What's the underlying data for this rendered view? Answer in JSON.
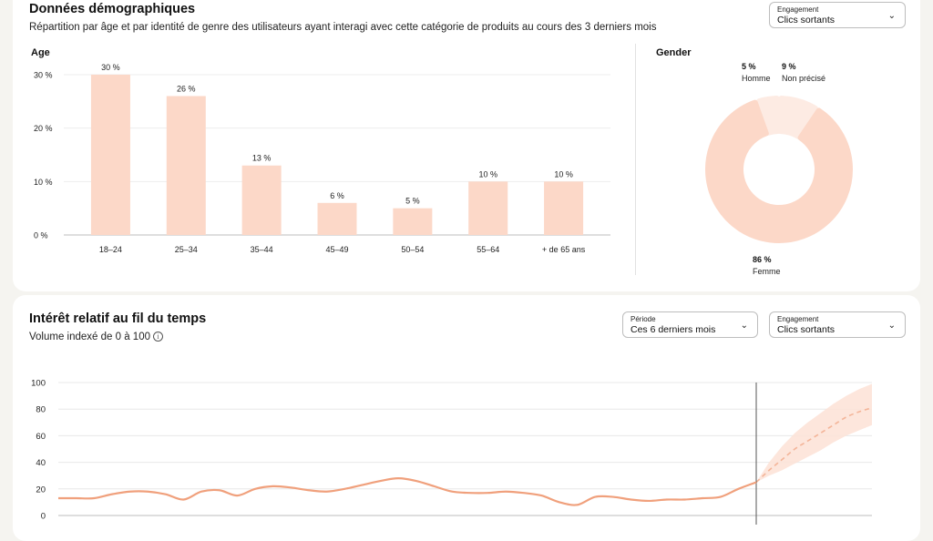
{
  "demographics": {
    "title": "Données démographiques",
    "subtitle": "Répartition par âge et par identité de genre des utilisateurs ayant interagi avec cette catégorie de produits au cours des 3 derniers mois",
    "engagement": {
      "label": "Engagement",
      "value": "Clics sortants"
    },
    "age_label": "Age",
    "gender_label": "Gender"
  },
  "interest": {
    "title": "Intérêt relatif au fil du temps",
    "subtitle": "Volume indexé de 0 à 100",
    "info_icon": "info-icon",
    "period": {
      "label": "Période",
      "value": "Ces 6 derniers mois"
    },
    "engagement": {
      "label": "Engagement",
      "value": "Clics sortants"
    }
  },
  "colors": {
    "bar": "#fcd8c8",
    "line": "#f0a07c",
    "forecast_band": "#fde2d6",
    "donut": "#fcd8c8",
    "donut_light": "#fdebe3"
  },
  "chart_data": [
    {
      "type": "bar",
      "title": "Age",
      "categories": [
        "18–24",
        "25–34",
        "35–44",
        "45–49",
        "50–54",
        "55–64",
        "+ de 65 ans"
      ],
      "values": [
        30,
        26,
        13,
        6,
        5,
        10,
        10
      ],
      "value_labels": [
        "30 %",
        "26 %",
        "13 %",
        "6 %",
        "5 %",
        "10 %",
        "10 %"
      ],
      "yticks": [
        "0 %",
        "10 %",
        "20 %",
        "30 %"
      ],
      "ylim": [
        0,
        30
      ]
    },
    {
      "type": "pie",
      "title": "Gender",
      "labels": [
        "Homme",
        "Non précisé",
        "Femme"
      ],
      "values": [
        5,
        9,
        86
      ],
      "value_labels": [
        "5 %",
        "9 %",
        "86 %"
      ]
    },
    {
      "type": "line",
      "title": "Intérêt relatif au fil du temps",
      "ylim": [
        0,
        100
      ],
      "yticks": [
        0,
        20,
        40,
        60,
        80,
        100
      ],
      "series": [
        {
          "values": [
            13,
            13,
            13,
            16,
            18,
            18,
            16,
            12,
            18,
            19,
            15,
            20,
            22,
            21,
            19,
            18,
            20,
            23,
            26,
            28,
            26,
            22,
            18,
            17,
            17,
            18,
            17,
            15,
            10,
            8,
            14,
            14,
            12,
            11,
            12,
            12,
            13,
            14,
            20,
            25
          ]
        }
      ],
      "forecast": {
        "values": [
          25,
          34,
          42,
          50,
          56,
          62,
          68,
          74,
          78,
          81
        ],
        "upper": [
          25,
          40,
          52,
          62,
          70,
          77,
          84,
          90,
          95,
          99
        ],
        "lower": [
          25,
          30,
          34,
          39,
          44,
          49,
          55,
          60,
          64,
          68
        ]
      }
    }
  ]
}
